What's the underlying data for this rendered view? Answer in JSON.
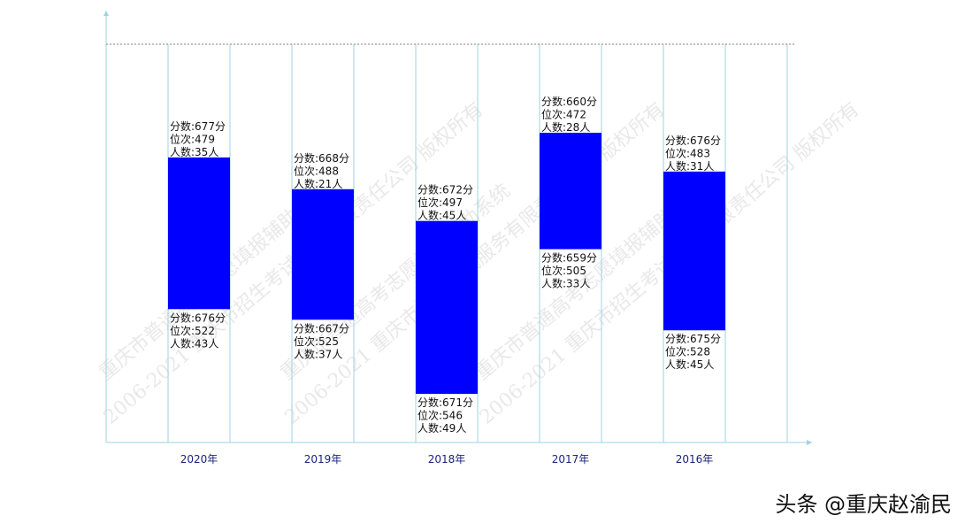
{
  "chart_data": {
    "type": "bar",
    "categories": [
      "2020年",
      "2019年",
      "2018年",
      "2017年",
      "2016年"
    ],
    "bars": [
      {
        "top": {
          "score": "分数:677分",
          "rank": "位次:479",
          "count": "人数:35人"
        },
        "bottom": {
          "score": "分数:676分",
          "rank": "位次:522",
          "count": "人数:43人"
        }
      },
      {
        "top": {
          "score": "分数:668分",
          "rank": "位次:488",
          "count": "人数:21人"
        },
        "bottom": {
          "score": "分数:667分",
          "rank": "位次:525",
          "count": "人数:37人"
        }
      },
      {
        "top": {
          "score": "分数:672分",
          "rank": "位次:497",
          "count": "人数:45人"
        },
        "bottom": {
          "score": "分数:671分",
          "rank": "位次:546",
          "count": "人数:49人"
        }
      },
      {
        "top": {
          "score": "分数:660分",
          "rank": "位次:472",
          "count": "人数:28人"
        },
        "bottom": {
          "score": "分数:659分",
          "rank": "位次:505",
          "count": "人数:33人"
        }
      },
      {
        "top": {
          "score": "分数:676分",
          "rank": "位次:483",
          "count": "人数:31人"
        },
        "bottom": {
          "score": "分数:675分",
          "rank": "位次:528",
          "count": "人数:45人"
        }
      }
    ],
    "top_rank_values": [
      479,
      488,
      497,
      472,
      483
    ],
    "bottom_rank_values": [
      522,
      525,
      546,
      505,
      528
    ],
    "grid": true,
    "legend": "none"
  },
  "colors": {
    "bar": "#0000ff",
    "axis": "#9ed3e0",
    "ref_line": "#7f7f7f",
    "tick_text": "#1a237e"
  },
  "watermark": {
    "texts": [
      "重庆市普通高考志愿填报辅助系统",
      "2006-2021 重庆市招生考试服务有限责任公司 版权所有"
    ]
  },
  "credit": "头条 @重庆赵渝民"
}
